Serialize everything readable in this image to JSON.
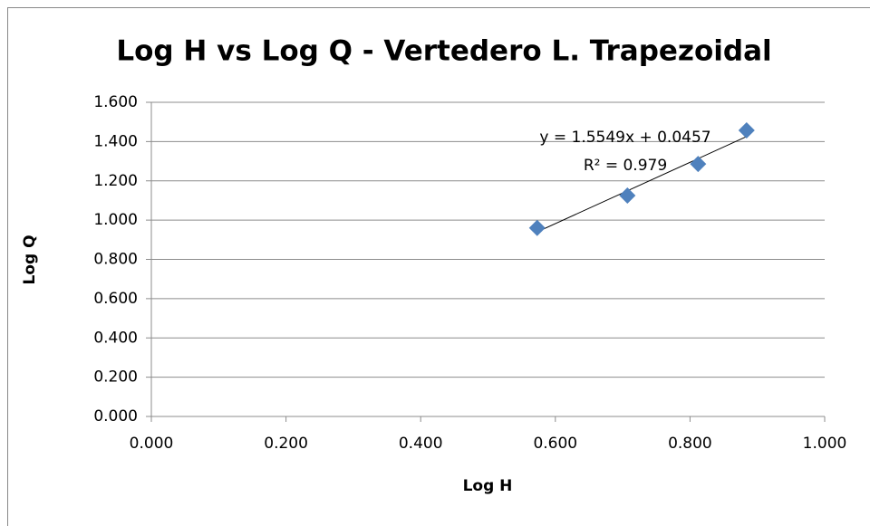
{
  "chart_data": {
    "type": "scatter",
    "title": "Log H vs Log Q - Vertedero L. Trapezoidal",
    "x_label": "Log H",
    "y_label": "Log Q",
    "series": [
      {
        "name": "Log Q",
        "color": "#4f81bd",
        "x": [
          0.573,
          0.707,
          0.812,
          0.884
        ],
        "values": [
          0.96,
          1.125,
          1.286,
          1.457
        ]
      }
    ],
    "trendline": true,
    "annotations": [
      "y = 1.5549x + 0.0457",
      "R² = 0.979"
    ],
    "xlim": [
      0,
      1
    ],
    "ylim": [
      0,
      1.6
    ],
    "xticks": [
      {
        "value": 0,
        "label": "0.000"
      },
      {
        "value": 0.2,
        "label": "0.200"
      },
      {
        "value": 0.4,
        "label": "0.400"
      },
      {
        "value": 0.6,
        "label": "0.600"
      },
      {
        "value": 0.8,
        "label": "0.800"
      },
      {
        "value": 1,
        "label": "1.000"
      }
    ],
    "yticks": [
      {
        "value": 0,
        "label": "0.000"
      },
      {
        "value": 0.2,
        "label": "0.200"
      },
      {
        "value": 0.4,
        "label": "0.400"
      },
      {
        "value": 0.6,
        "label": "0.600"
      },
      {
        "value": 0.8,
        "label": "0.800"
      },
      {
        "value": 1,
        "label": "1.000"
      },
      {
        "value": 1.2,
        "label": "1.200"
      },
      {
        "value": 1.4,
        "label": "1.400"
      },
      {
        "value": 1.6,
        "label": "1.600"
      }
    ],
    "grid": true
  }
}
